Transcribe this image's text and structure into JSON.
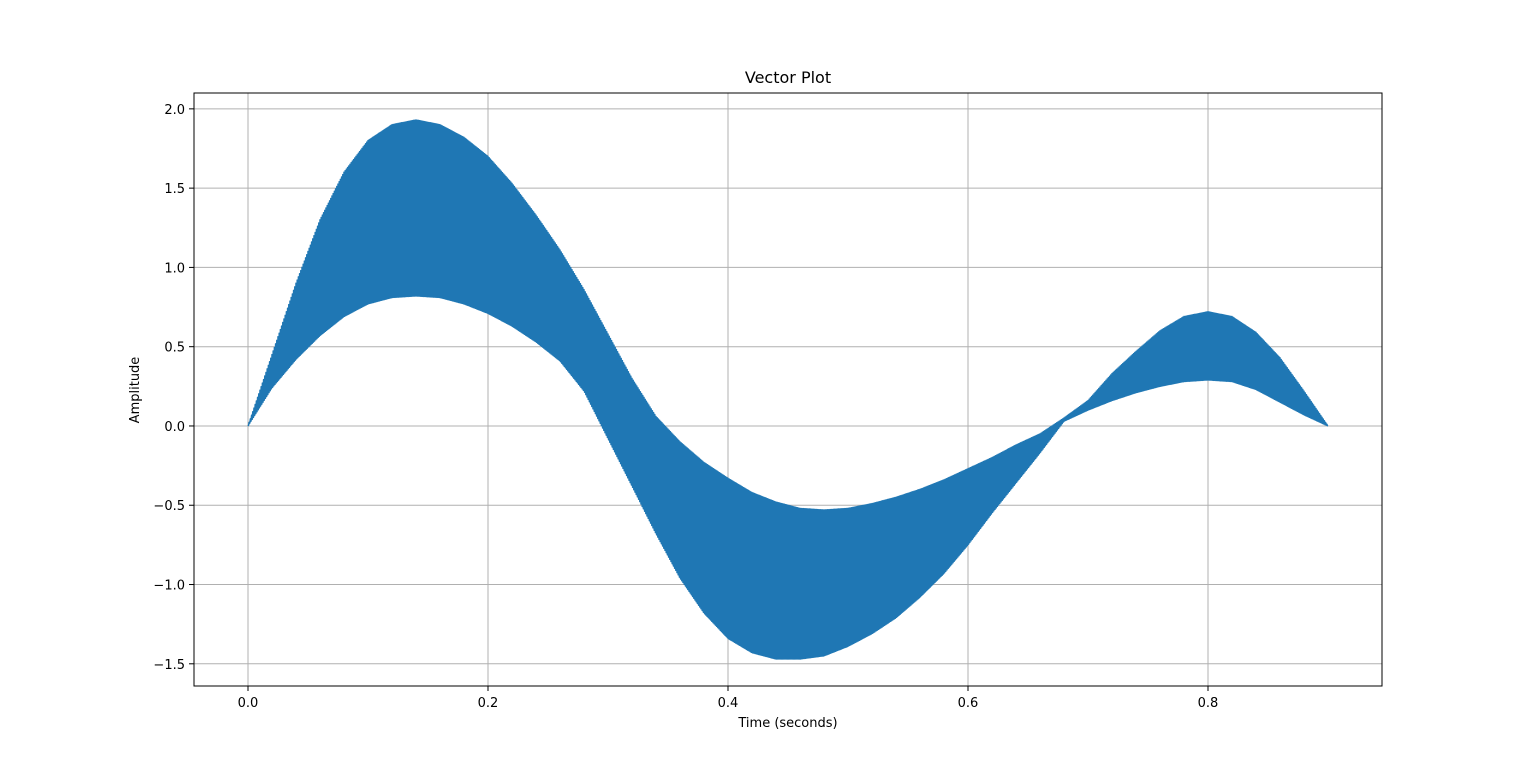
{
  "chart_data": {
    "type": "line",
    "title": "Vector Plot",
    "xlabel": "Time (seconds)",
    "ylabel": "Amplitude",
    "xlim": [
      -0.045,
      0.945
    ],
    "ylim": [
      -1.64,
      2.1
    ],
    "grid": true,
    "series_color": "#1f77b4",
    "x_ticks": [
      {
        "value": 0.0,
        "label": "0.0"
      },
      {
        "value": 0.2,
        "label": "0.2"
      },
      {
        "value": 0.4,
        "label": "0.4"
      },
      {
        "value": 0.6,
        "label": "0.6"
      },
      {
        "value": 0.8,
        "label": "0.8"
      }
    ],
    "y_ticks": [
      {
        "value": 2.0,
        "label": "2.0"
      },
      {
        "value": 1.5,
        "label": "1.5"
      },
      {
        "value": 1.0,
        "label": "1.0"
      },
      {
        "value": 0.5,
        "label": "0.5"
      },
      {
        "value": 0.0,
        "label": "0.0"
      },
      {
        "value": -0.5,
        "label": "−0.5"
      },
      {
        "value": -1.0,
        "label": "−1.0"
      },
      {
        "value": -1.5,
        "label": "−1.5"
      }
    ],
    "series": [
      {
        "x_range": [
          0.0,
          0.9
        ],
        "upper_envelope": [
          [
            0.0,
            0.0
          ],
          [
            0.02,
            0.45
          ],
          [
            0.04,
            0.9
          ],
          [
            0.06,
            1.3
          ],
          [
            0.08,
            1.6
          ],
          [
            0.1,
            1.8
          ],
          [
            0.12,
            1.9
          ],
          [
            0.14,
            1.93
          ],
          [
            0.16,
            1.9
          ],
          [
            0.18,
            1.82
          ],
          [
            0.2,
            1.7
          ],
          [
            0.22,
            1.53
          ],
          [
            0.24,
            1.33
          ],
          [
            0.26,
            1.11
          ],
          [
            0.28,
            0.86
          ],
          [
            0.3,
            0.58
          ],
          [
            0.32,
            0.3
          ],
          [
            0.34,
            0.06
          ],
          [
            0.36,
            -0.1
          ],
          [
            0.38,
            -0.23
          ],
          [
            0.4,
            -0.33
          ],
          [
            0.42,
            -0.42
          ],
          [
            0.44,
            -0.48
          ],
          [
            0.46,
            -0.52
          ],
          [
            0.48,
            -0.53
          ],
          [
            0.5,
            -0.52
          ],
          [
            0.52,
            -0.49
          ],
          [
            0.54,
            -0.45
          ],
          [
            0.56,
            -0.4
          ],
          [
            0.58,
            -0.34
          ],
          [
            0.6,
            -0.27
          ],
          [
            0.62,
            -0.2
          ],
          [
            0.64,
            -0.12
          ],
          [
            0.66,
            -0.05
          ],
          [
            0.68,
            0.05
          ],
          [
            0.7,
            0.16
          ],
          [
            0.72,
            0.33
          ],
          [
            0.74,
            0.47
          ],
          [
            0.76,
            0.6
          ],
          [
            0.78,
            0.69
          ],
          [
            0.8,
            0.72
          ],
          [
            0.82,
            0.69
          ],
          [
            0.84,
            0.59
          ],
          [
            0.86,
            0.43
          ],
          [
            0.88,
            0.22
          ],
          [
            0.9,
            0.0
          ]
        ],
        "lower_envelope": [
          [
            0.0,
            0.0
          ],
          [
            0.02,
            0.24
          ],
          [
            0.04,
            0.42
          ],
          [
            0.06,
            0.57
          ],
          [
            0.08,
            0.69
          ],
          [
            0.1,
            0.77
          ],
          [
            0.12,
            0.81
          ],
          [
            0.14,
            0.82
          ],
          [
            0.16,
            0.81
          ],
          [
            0.18,
            0.77
          ],
          [
            0.2,
            0.71
          ],
          [
            0.22,
            0.63
          ],
          [
            0.24,
            0.53
          ],
          [
            0.26,
            0.41
          ],
          [
            0.28,
            0.22
          ],
          [
            0.3,
            -0.08
          ],
          [
            0.32,
            -0.38
          ],
          [
            0.34,
            -0.68
          ],
          [
            0.36,
            -0.96
          ],
          [
            0.38,
            -1.18
          ],
          [
            0.4,
            -1.34
          ],
          [
            0.42,
            -1.43
          ],
          [
            0.44,
            -1.47
          ],
          [
            0.46,
            -1.47
          ],
          [
            0.48,
            -1.45
          ],
          [
            0.5,
            -1.39
          ],
          [
            0.52,
            -1.31
          ],
          [
            0.54,
            -1.21
          ],
          [
            0.56,
            -1.08
          ],
          [
            0.58,
            -0.93
          ],
          [
            0.6,
            -0.75
          ],
          [
            0.62,
            -0.55
          ],
          [
            0.64,
            -0.36
          ],
          [
            0.66,
            -0.17
          ],
          [
            0.68,
            0.03
          ],
          [
            0.7,
            0.1
          ],
          [
            0.72,
            0.16
          ],
          [
            0.74,
            0.21
          ],
          [
            0.76,
            0.25
          ],
          [
            0.78,
            0.28
          ],
          [
            0.8,
            0.29
          ],
          [
            0.82,
            0.28
          ],
          [
            0.84,
            0.23
          ],
          [
            0.86,
            0.15
          ],
          [
            0.88,
            0.07
          ],
          [
            0.9,
            0.0
          ]
        ]
      }
    ]
  }
}
